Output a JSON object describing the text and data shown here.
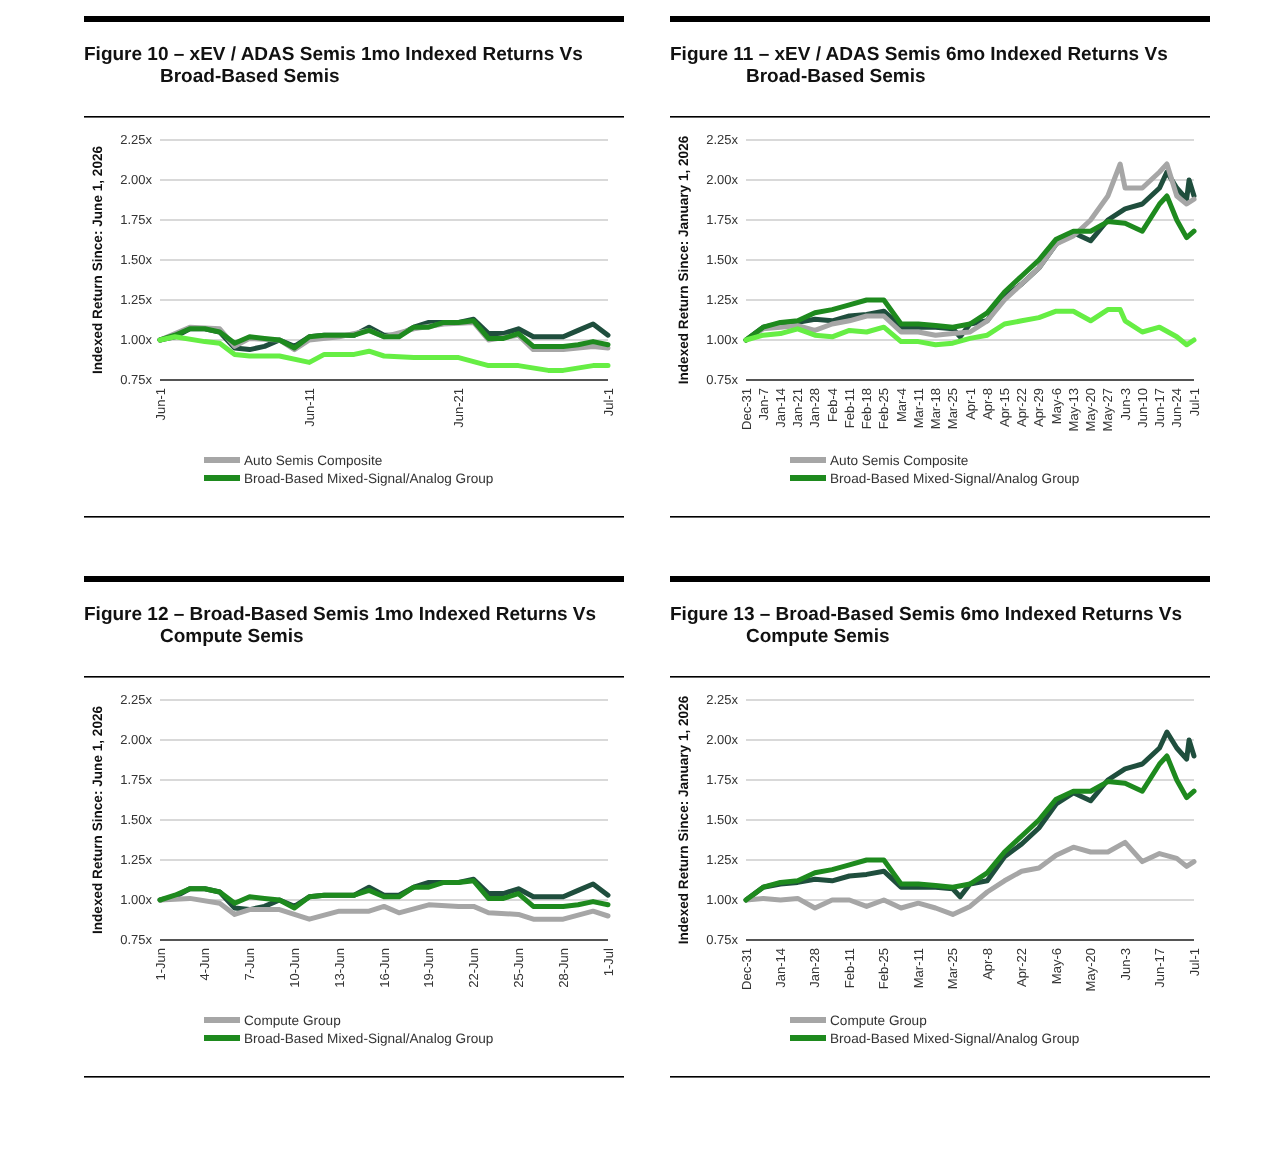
{
  "chart_data": [
    {
      "type": "line",
      "title": "Figure 10 – xEV / ADAS Semis 1mo Indexed Returns Vs Broad-Based Semis",
      "ylabel": "Indexed Return Since: June 1, 2026",
      "x": [
        "--06-01",
        "--06-02",
        "--06-03",
        "--06-04",
        "--06-05",
        "--06-06",
        "--06-07",
        "--06-08",
        "--06-09",
        "--06-10",
        "--06-11",
        "--06-12",
        "--06-13",
        "--06-14",
        "--06-15",
        "--06-16",
        "--06-17",
        "--06-18",
        "--06-19",
        "--06-20",
        "--06-21",
        "--06-22",
        "--06-23",
        "--06-24",
        "--06-25",
        "--06-26",
        "--06-27",
        "--06-28",
        "--06-29",
        "--06-30",
        "--07-01"
      ],
      "series": [
        {
          "color": "#1f4e3d",
          "values": [
            1.0,
            1.02,
            1.07,
            1.07,
            1.05,
            0.95,
            0.94,
            0.96,
            1.0,
            0.96,
            1.02,
            1.03,
            1.03,
            1.03,
            1.08,
            1.03,
            1.03,
            1.08,
            1.11,
            1.11,
            1.11,
            1.13,
            1.04,
            1.04,
            1.07,
            1.02,
            1.02,
            1.02,
            1.06,
            1.1,
            1.03
          ]
        },
        {
          "name": "Auto Semis Composite",
          "color": "#a6a6a6",
          "x": [
            "--06-01",
            "--06-03",
            "--06-05",
            "--06-06",
            "--06-07",
            "--06-09",
            "--06-10",
            "--06-11",
            "--06-13",
            "--06-15",
            "--06-16",
            "--06-18",
            "--06-20",
            "--06-22",
            "--06-23",
            "--06-25",
            "--06-26",
            "--06-28",
            "--06-30",
            "--07-01"
          ],
          "values": [
            1.0,
            1.08,
            1.07,
            0.96,
            1.01,
            1.0,
            0.94,
            1.0,
            1.02,
            1.06,
            1.02,
            1.07,
            1.1,
            1.11,
            1.0,
            1.03,
            0.94,
            0.94,
            0.96,
            0.95
          ]
        },
        {
          "name": "Broad-Based Mixed-Signal/Analog Group",
          "color": "#1e8a1e",
          "values": [
            1.0,
            1.03,
            1.07,
            1.07,
            1.05,
            0.98,
            1.02,
            1.01,
            1.0,
            0.95,
            1.02,
            1.03,
            1.03,
            1.03,
            1.06,
            1.02,
            1.02,
            1.08,
            1.08,
            1.11,
            1.11,
            1.12,
            1.01,
            1.01,
            1.04,
            0.96,
            0.96,
            0.96,
            0.97,
            0.99,
            0.97
          ]
        },
        {
          "color": "#66ee44",
          "x": [
            "--06-01",
            "--06-02",
            "--06-04",
            "--06-05",
            "--06-06",
            "--06-07",
            "--06-09",
            "--06-11",
            "--06-12",
            "--06-14",
            "--06-15",
            "--06-16",
            "--06-18",
            "--06-21",
            "--06-23",
            "--06-25",
            "--06-27",
            "--06-28",
            "--06-30",
            "--07-01"
          ],
          "values": [
            1.0,
            1.02,
            0.99,
            0.98,
            0.91,
            0.9,
            0.9,
            0.86,
            0.91,
            0.91,
            0.93,
            0.9,
            0.89,
            0.89,
            0.84,
            0.84,
            0.81,
            0.81,
            0.84,
            0.84
          ]
        }
      ],
      "xlim": [
        "--06-01",
        "--07-01"
      ],
      "xticks": [
        {
          "value": "--06-01",
          "label": "Jun-1"
        },
        {
          "value": "--06-11",
          "label": "Jun-11"
        },
        {
          "value": "--06-21",
          "label": "Jun-21"
        },
        {
          "value": "--07-01",
          "label": "Jul-1"
        }
      ],
      "ylim": [
        0.75,
        2.25
      ],
      "yticks": [
        {
          "value": 0.75,
          "label": "0.75x"
        },
        {
          "value": 1,
          "label": "1.00x"
        },
        {
          "value": 1.25,
          "label": "1.25x"
        },
        {
          "value": 1.5,
          "label": "1.50x"
        },
        {
          "value": 1.75,
          "label": "1.75x"
        },
        {
          "value": 2,
          "label": "2.00x"
        },
        {
          "value": 2.25,
          "label": "2.25x"
        }
      ],
      "grid": "y",
      "legend": "bottom"
    },
    {
      "type": "line",
      "title": "Figure 11 – xEV / ADAS Semis 6mo Indexed Returns Vs Broad-Based Semis",
      "ylabel": "Indexed Return Since: January 1, 2026",
      "series": [
        {
          "color": "#1f4e3d",
          "x": [
            "2025-12-31",
            "2026-01-07",
            "2026-01-14",
            "2026-01-21",
            "2026-01-28",
            "2026-02-04",
            "2026-02-11",
            "2026-02-18",
            "2026-02-25",
            "2026-03-04",
            "2026-03-11",
            "2026-03-18",
            "2026-03-25",
            "2026-03-28",
            "2026-04-01",
            "2026-04-08",
            "2026-04-15",
            "2026-04-22",
            "2026-04-29",
            "2026-05-06",
            "2026-05-13",
            "2026-05-20",
            "2026-05-27",
            "2026-06-03",
            "2026-06-10",
            "2026-06-17",
            "2026-06-20",
            "2026-06-24",
            "2026-06-28",
            "2026-06-29",
            "2026-07-01"
          ],
          "values": [
            1.0,
            1.08,
            1.1,
            1.11,
            1.13,
            1.12,
            1.15,
            1.16,
            1.18,
            1.08,
            1.08,
            1.08,
            1.07,
            1.02,
            1.1,
            1.12,
            1.27,
            1.35,
            1.45,
            1.6,
            1.67,
            1.62,
            1.75,
            1.82,
            1.85,
            1.95,
            2.05,
            1.95,
            1.88,
            2.0,
            1.9
          ]
        },
        {
          "name": "Auto Semis Composite",
          "color": "#a6a6a6",
          "x": [
            "2025-12-31",
            "2026-01-07",
            "2026-01-14",
            "2026-01-21",
            "2026-01-28",
            "2026-02-04",
            "2026-02-11",
            "2026-02-18",
            "2026-02-25",
            "2026-03-04",
            "2026-03-11",
            "2026-03-18",
            "2026-03-25",
            "2026-04-01",
            "2026-04-08",
            "2026-04-15",
            "2026-04-22",
            "2026-04-29",
            "2026-05-06",
            "2026-05-13",
            "2026-05-20",
            "2026-05-27",
            "2026-06-01",
            "2026-06-03",
            "2026-06-10",
            "2026-06-17",
            "2026-06-20",
            "2026-06-24",
            "2026-06-28",
            "2026-07-01"
          ],
          "values": [
            1.0,
            1.07,
            1.08,
            1.09,
            1.06,
            1.1,
            1.12,
            1.15,
            1.15,
            1.05,
            1.05,
            1.03,
            1.04,
            1.05,
            1.12,
            1.25,
            1.35,
            1.45,
            1.6,
            1.65,
            1.75,
            1.9,
            2.1,
            1.95,
            1.95,
            2.05,
            2.1,
            1.9,
            1.85,
            1.88
          ]
        },
        {
          "name": "Broad-Based Mixed-Signal/Analog Group",
          "color": "#1e8a1e",
          "x": [
            "2025-12-31",
            "2026-01-07",
            "2026-01-14",
            "2026-01-21",
            "2026-01-28",
            "2026-02-04",
            "2026-02-11",
            "2026-02-18",
            "2026-02-25",
            "2026-03-04",
            "2026-03-11",
            "2026-03-18",
            "2026-03-25",
            "2026-04-01",
            "2026-04-08",
            "2026-04-15",
            "2026-04-22",
            "2026-04-29",
            "2026-05-06",
            "2026-05-13",
            "2026-05-20",
            "2026-05-27",
            "2026-06-03",
            "2026-06-10",
            "2026-06-17",
            "2026-06-20",
            "2026-06-24",
            "2026-06-28",
            "2026-07-01"
          ],
          "values": [
            1.0,
            1.08,
            1.11,
            1.12,
            1.17,
            1.19,
            1.22,
            1.25,
            1.25,
            1.1,
            1.1,
            1.09,
            1.08,
            1.1,
            1.17,
            1.3,
            1.4,
            1.5,
            1.63,
            1.68,
            1.68,
            1.74,
            1.73,
            1.68,
            1.85,
            1.9,
            1.75,
            1.64,
            1.68
          ]
        },
        {
          "color": "#66ee44",
          "x": [
            "2025-12-31",
            "2026-01-07",
            "2026-01-14",
            "2026-01-21",
            "2026-01-28",
            "2026-02-04",
            "2026-02-11",
            "2026-02-18",
            "2026-02-25",
            "2026-03-04",
            "2026-03-11",
            "2026-03-18",
            "2026-03-25",
            "2026-04-01",
            "2026-04-08",
            "2026-04-15",
            "2026-04-22",
            "2026-04-29",
            "2026-05-06",
            "2026-05-13",
            "2026-05-20",
            "2026-05-27",
            "2026-06-01",
            "2026-06-03",
            "2026-06-10",
            "2026-06-17",
            "2026-06-24",
            "2026-06-28",
            "2026-07-01"
          ],
          "values": [
            1.0,
            1.03,
            1.04,
            1.07,
            1.03,
            1.02,
            1.06,
            1.05,
            1.08,
            0.99,
            0.99,
            0.97,
            0.98,
            1.01,
            1.03,
            1.1,
            1.12,
            1.14,
            1.18,
            1.18,
            1.12,
            1.19,
            1.19,
            1.12,
            1.05,
            1.08,
            1.02,
            0.97,
            1.0
          ]
        }
      ],
      "xlim": [
        "2025-12-31",
        "2026-07-01"
      ],
      "xticks": [
        {
          "value": "2025-12-31",
          "label": "Dec-31"
        },
        {
          "value": "2026-01-07",
          "label": "Jan-7"
        },
        {
          "value": "2026-01-14",
          "label": "Jan-14"
        },
        {
          "value": "2026-01-21",
          "label": "Jan-21"
        },
        {
          "value": "2026-01-28",
          "label": "Jan-28"
        },
        {
          "value": "2026-02-04",
          "label": "Feb-4"
        },
        {
          "value": "2026-02-11",
          "label": "Feb-11"
        },
        {
          "value": "2026-02-18",
          "label": "Feb-18"
        },
        {
          "value": "2026-02-25",
          "label": "Feb-25"
        },
        {
          "value": "2026-03-04",
          "label": "Mar-4"
        },
        {
          "value": "2026-03-11",
          "label": "Mar-11"
        },
        {
          "value": "2026-03-18",
          "label": "Mar-18"
        },
        {
          "value": "2026-03-25",
          "label": "Mar-25"
        },
        {
          "value": "2026-04-01",
          "label": "Apr-1"
        },
        {
          "value": "2026-04-08",
          "label": "Apr-8"
        },
        {
          "value": "2026-04-15",
          "label": "Apr-15"
        },
        {
          "value": "2026-04-22",
          "label": "Apr-22"
        },
        {
          "value": "2026-04-29",
          "label": "Apr-29"
        },
        {
          "value": "2026-05-06",
          "label": "May-6"
        },
        {
          "value": "2026-05-13",
          "label": "May-13"
        },
        {
          "value": "2026-05-20",
          "label": "May-20"
        },
        {
          "value": "2026-05-27",
          "label": "May-27"
        },
        {
          "value": "2026-06-03",
          "label": "Jun-3"
        },
        {
          "value": "2026-06-10",
          "label": "Jun-10"
        },
        {
          "value": "2026-06-17",
          "label": "Jun-17"
        },
        {
          "value": "2026-06-24",
          "label": "Jun-24"
        },
        {
          "value": "2026-07-01",
          "label": "Jul-1"
        }
      ],
      "ylim": [
        0.75,
        2.25
      ],
      "yticks": [
        {
          "value": 0.75,
          "label": "0.75x"
        },
        {
          "value": 1,
          "label": "1.00x"
        },
        {
          "value": 1.25,
          "label": "1.25x"
        },
        {
          "value": 1.5,
          "label": "1.50x"
        },
        {
          "value": 1.75,
          "label": "1.75x"
        },
        {
          "value": 2,
          "label": "2.00x"
        },
        {
          "value": 2.25,
          "label": "2.25x"
        }
      ],
      "grid": "y",
      "legend": "bottom"
    },
    {
      "type": "line",
      "title": "Figure 12 – Broad-Based Semis 1mo Indexed Returns Vs Compute Semis",
      "ylabel": "Indexed Return Since: June 1, 2026",
      "x": [
        "--06-01",
        "--06-02",
        "--06-03",
        "--06-04",
        "--06-05",
        "--06-06",
        "--06-07",
        "--06-08",
        "--06-09",
        "--06-10",
        "--06-11",
        "--06-12",
        "--06-13",
        "--06-14",
        "--06-15",
        "--06-16",
        "--06-17",
        "--06-18",
        "--06-19",
        "--06-20",
        "--06-21",
        "--06-22",
        "--06-23",
        "--06-24",
        "--06-25",
        "--06-26",
        "--06-27",
        "--06-28",
        "--06-29",
        "--06-30",
        "--07-01"
      ],
      "series": [
        {
          "color": "#1f4e3d",
          "values": [
            1.0,
            1.02,
            1.07,
            1.07,
            1.05,
            0.95,
            0.94,
            0.96,
            1.0,
            0.96,
            1.02,
            1.03,
            1.03,
            1.03,
            1.08,
            1.03,
            1.03,
            1.08,
            1.11,
            1.11,
            1.11,
            1.13,
            1.04,
            1.04,
            1.07,
            1.02,
            1.02,
            1.02,
            1.06,
            1.1,
            1.03
          ]
        },
        {
          "name": "Compute Group",
          "color": "#a6a6a6",
          "x": [
            "--06-01",
            "--06-03",
            "--06-05",
            "--06-06",
            "--06-07",
            "--06-09",
            "--06-11",
            "--06-13",
            "--06-15",
            "--06-16",
            "--06-17",
            "--06-19",
            "--06-21",
            "--06-22",
            "--06-23",
            "--06-25",
            "--06-26",
            "--06-28",
            "--06-30",
            "--07-01"
          ],
          "values": [
            1.0,
            1.01,
            0.98,
            0.91,
            0.94,
            0.94,
            0.88,
            0.93,
            0.93,
            0.96,
            0.92,
            0.97,
            0.96,
            0.96,
            0.92,
            0.91,
            0.88,
            0.88,
            0.93,
            0.9
          ]
        },
        {
          "name": "Broad-Based Mixed-Signal/Analog Group",
          "color": "#1e8a1e",
          "values": [
            1.0,
            1.03,
            1.07,
            1.07,
            1.05,
            0.98,
            1.02,
            1.01,
            1.0,
            0.95,
            1.02,
            1.03,
            1.03,
            1.03,
            1.06,
            1.02,
            1.02,
            1.08,
            1.08,
            1.11,
            1.11,
            1.12,
            1.01,
            1.01,
            1.04,
            0.96,
            0.96,
            0.96,
            0.97,
            0.99,
            0.97
          ]
        }
      ],
      "xlim": [
        "--06-01",
        "--07-01"
      ],
      "xticks": [
        {
          "value": "--06-01",
          "label": "1-Jun"
        },
        {
          "value": "--06-04",
          "label": "4-Jun"
        },
        {
          "value": "--06-07",
          "label": "7-Jun"
        },
        {
          "value": "--06-10",
          "label": "10-Jun"
        },
        {
          "value": "--06-13",
          "label": "13-Jun"
        },
        {
          "value": "--06-16",
          "label": "16-Jun"
        },
        {
          "value": "--06-19",
          "label": "19-Jun"
        },
        {
          "value": "--06-22",
          "label": "22-Jun"
        },
        {
          "value": "--06-25",
          "label": "25-Jun"
        },
        {
          "value": "--06-28",
          "label": "28-Jun"
        },
        {
          "value": "--07-01",
          "label": "1-Jul"
        }
      ],
      "ylim": [
        0.75,
        2.25
      ],
      "yticks": [
        {
          "value": 0.75,
          "label": "0.75x"
        },
        {
          "value": 1,
          "label": "1.00x"
        },
        {
          "value": 1.25,
          "label": "1.25x"
        },
        {
          "value": 1.5,
          "label": "1.50x"
        },
        {
          "value": 1.75,
          "label": "1.75x"
        },
        {
          "value": 2,
          "label": "2.00x"
        },
        {
          "value": 2.25,
          "label": "2.25x"
        }
      ],
      "grid": "y",
      "legend": "bottom"
    },
    {
      "type": "line",
      "title": "Figure 13 – Broad-Based Semis 6mo Indexed Returns Vs Compute Semis",
      "ylabel": "Indexed Return Since: January 1, 2026",
      "series": [
        {
          "color": "#1f4e3d",
          "x": [
            "2025-12-31",
            "2026-01-07",
            "2026-01-14",
            "2026-01-21",
            "2026-01-28",
            "2026-02-04",
            "2026-02-11",
            "2026-02-18",
            "2026-02-25",
            "2026-03-04",
            "2026-03-11",
            "2026-03-18",
            "2026-03-25",
            "2026-03-28",
            "2026-04-01",
            "2026-04-08",
            "2026-04-15",
            "2026-04-22",
            "2026-04-29",
            "2026-05-06",
            "2026-05-13",
            "2026-05-20",
            "2026-05-27",
            "2026-06-03",
            "2026-06-10",
            "2026-06-17",
            "2026-06-20",
            "2026-06-24",
            "2026-06-28",
            "2026-06-29",
            "2026-07-01"
          ],
          "values": [
            1.0,
            1.08,
            1.1,
            1.11,
            1.13,
            1.12,
            1.15,
            1.16,
            1.18,
            1.08,
            1.08,
            1.08,
            1.07,
            1.02,
            1.1,
            1.12,
            1.27,
            1.35,
            1.45,
            1.6,
            1.67,
            1.62,
            1.75,
            1.82,
            1.85,
            1.95,
            2.05,
            1.95,
            1.88,
            2.0,
            1.9
          ]
        },
        {
          "name": "Compute Group",
          "color": "#a6a6a6",
          "x": [
            "2025-12-31",
            "2026-01-07",
            "2026-01-14",
            "2026-01-21",
            "2026-01-28",
            "2026-02-04",
            "2026-02-11",
            "2026-02-18",
            "2026-02-25",
            "2026-03-04",
            "2026-03-11",
            "2026-03-18",
            "2026-03-25",
            "2026-04-01",
            "2026-04-08",
            "2026-04-15",
            "2026-04-22",
            "2026-04-29",
            "2026-05-06",
            "2026-05-13",
            "2026-05-20",
            "2026-05-27",
            "2026-06-03",
            "2026-06-10",
            "2026-06-17",
            "2026-06-24",
            "2026-06-28",
            "2026-07-01"
          ],
          "values": [
            1.0,
            1.01,
            1.0,
            1.01,
            0.95,
            1.0,
            1.0,
            0.96,
            1.0,
            0.95,
            0.98,
            0.95,
            0.91,
            0.96,
            1.05,
            1.12,
            1.18,
            1.2,
            1.28,
            1.33,
            1.3,
            1.3,
            1.36,
            1.24,
            1.29,
            1.26,
            1.21,
            1.24
          ]
        },
        {
          "name": "Broad-Based Mixed-Signal/Analog Group",
          "color": "#1e8a1e",
          "x": [
            "2025-12-31",
            "2026-01-07",
            "2026-01-14",
            "2026-01-21",
            "2026-01-28",
            "2026-02-04",
            "2026-02-11",
            "2026-02-18",
            "2026-02-25",
            "2026-03-04",
            "2026-03-11",
            "2026-03-18",
            "2026-03-25",
            "2026-04-01",
            "2026-04-08",
            "2026-04-15",
            "2026-04-22",
            "2026-04-29",
            "2026-05-06",
            "2026-05-13",
            "2026-05-20",
            "2026-05-27",
            "2026-06-03",
            "2026-06-10",
            "2026-06-17",
            "2026-06-20",
            "2026-06-24",
            "2026-06-28",
            "2026-07-01"
          ],
          "values": [
            1.0,
            1.08,
            1.11,
            1.12,
            1.17,
            1.19,
            1.22,
            1.25,
            1.25,
            1.1,
            1.1,
            1.09,
            1.08,
            1.1,
            1.17,
            1.3,
            1.4,
            1.5,
            1.63,
            1.68,
            1.68,
            1.74,
            1.73,
            1.68,
            1.85,
            1.9,
            1.75,
            1.64,
            1.68
          ]
        }
      ],
      "xlim": [
        "2025-12-31",
        "2026-07-01"
      ],
      "xticks": [
        {
          "value": "2025-12-31",
          "label": "Dec-31"
        },
        {
          "value": "2026-01-14",
          "label": "Jan-14"
        },
        {
          "value": "2026-01-28",
          "label": "Jan-28"
        },
        {
          "value": "2026-02-11",
          "label": "Feb-11"
        },
        {
          "value": "2026-02-25",
          "label": "Feb-25"
        },
        {
          "value": "2026-03-11",
          "label": "Mar-11"
        },
        {
          "value": "2026-03-25",
          "label": "Mar-25"
        },
        {
          "value": "2026-04-08",
          "label": "Apr-8"
        },
        {
          "value": "2026-04-22",
          "label": "Apr-22"
        },
        {
          "value": "2026-05-06",
          "label": "May-6"
        },
        {
          "value": "2026-05-20",
          "label": "May-20"
        },
        {
          "value": "2026-06-03",
          "label": "Jun-3"
        },
        {
          "value": "2026-06-17",
          "label": "Jun-17"
        },
        {
          "value": "2026-07-01",
          "label": "Jul-1"
        }
      ],
      "ylim": [
        0.75,
        2.25
      ],
      "yticks": [
        {
          "value": 0.75,
          "label": "0.75x"
        },
        {
          "value": 1,
          "label": "1.00x"
        },
        {
          "value": 1.25,
          "label": "1.25x"
        },
        {
          "value": 1.5,
          "label": "1.50x"
        },
        {
          "value": 1.75,
          "label": "1.75x"
        },
        {
          "value": 2,
          "label": "2.00x"
        },
        {
          "value": 2.25,
          "label": "2.25x"
        }
      ],
      "grid": "y",
      "legend": "bottom"
    }
  ]
}
